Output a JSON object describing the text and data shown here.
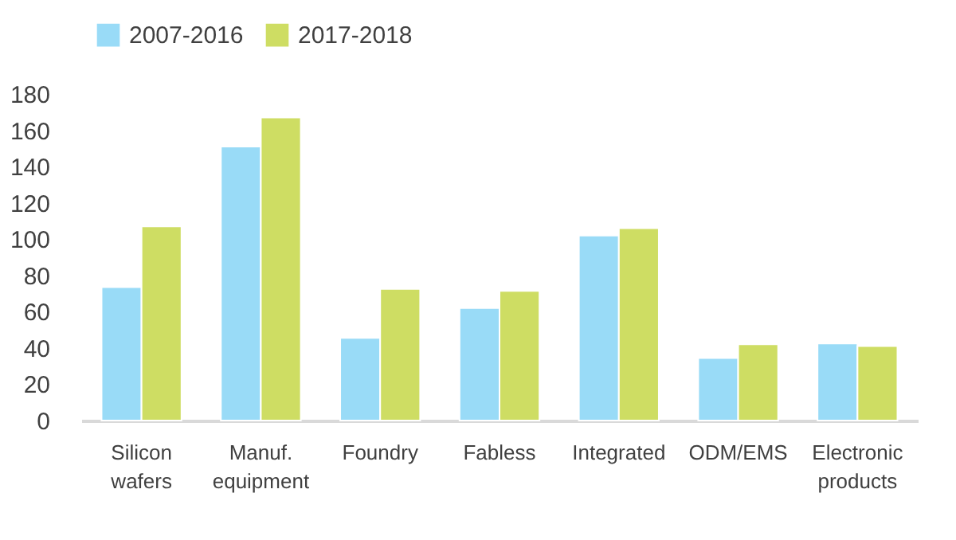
{
  "chart_data": {
    "type": "bar",
    "categories": [
      "Silicon wafers",
      "Manuf. equipment",
      "Foundry",
      "Fabless",
      "Integrated",
      "ODM/EMS",
      "Electronic products"
    ],
    "series": [
      {
        "name": "2007-2016",
        "color": "#99dbf7",
        "values": [
          73.5,
          151,
          45.5,
          62,
          102,
          34.5,
          42.5
        ]
      },
      {
        "name": "2017-2018",
        "color": "#cedd63",
        "values": [
          107,
          167,
          72.5,
          71.5,
          106,
          42,
          41
        ]
      }
    ],
    "ylim": [
      0,
      180
    ],
    "yticks": [
      0,
      20,
      40,
      60,
      80,
      100,
      120,
      140,
      160,
      180
    ],
    "grid": false,
    "legend": "top"
  }
}
